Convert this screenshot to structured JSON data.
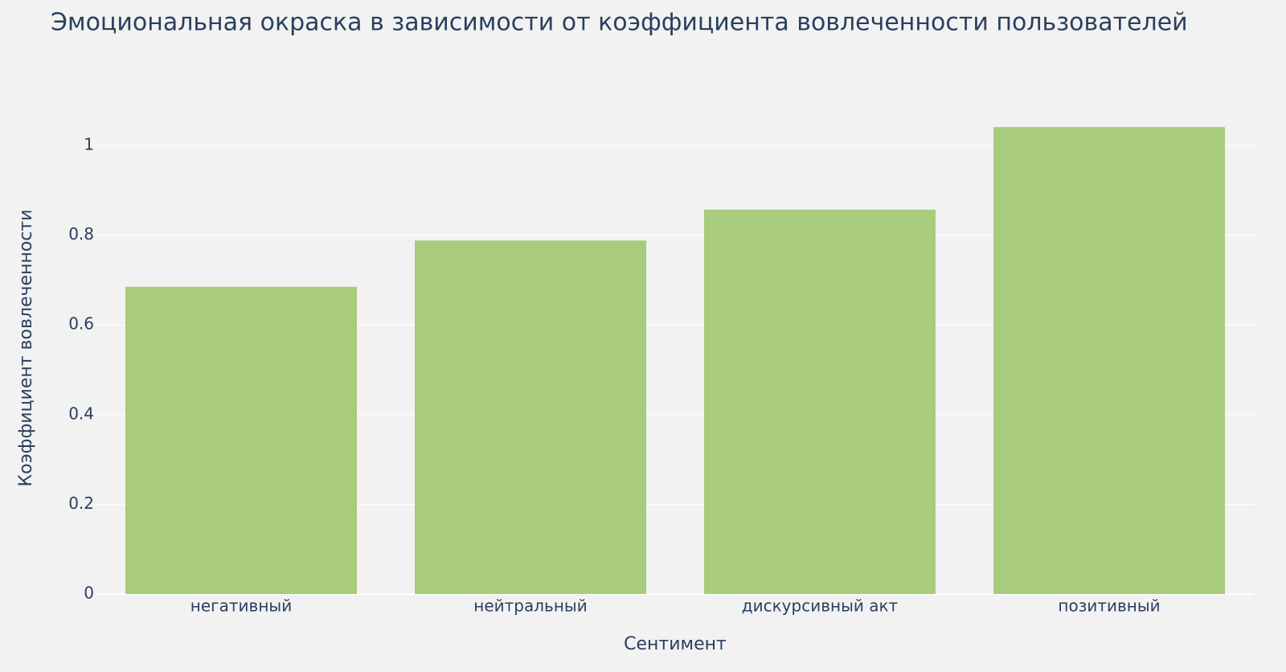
{
  "chart_data": {
    "type": "bar",
    "title": "Эмоциональная окраска в зависимости от коэффициента вовлеченности пользователей",
    "x_label": "Сентимент",
    "y_label": "Коэффициент вовлеченности",
    "categories": [
      "негативный",
      "нейтральный",
      "дискурсивный акт",
      "позитивный"
    ],
    "values": [
      0.685,
      0.788,
      0.857,
      1.041
    ],
    "color": "#a9cb7c",
    "ylim": [
      0,
      1.094
    ],
    "yticks": [
      0,
      0.2,
      0.4,
      0.6,
      0.8,
      1
    ],
    "grid": true
  }
}
